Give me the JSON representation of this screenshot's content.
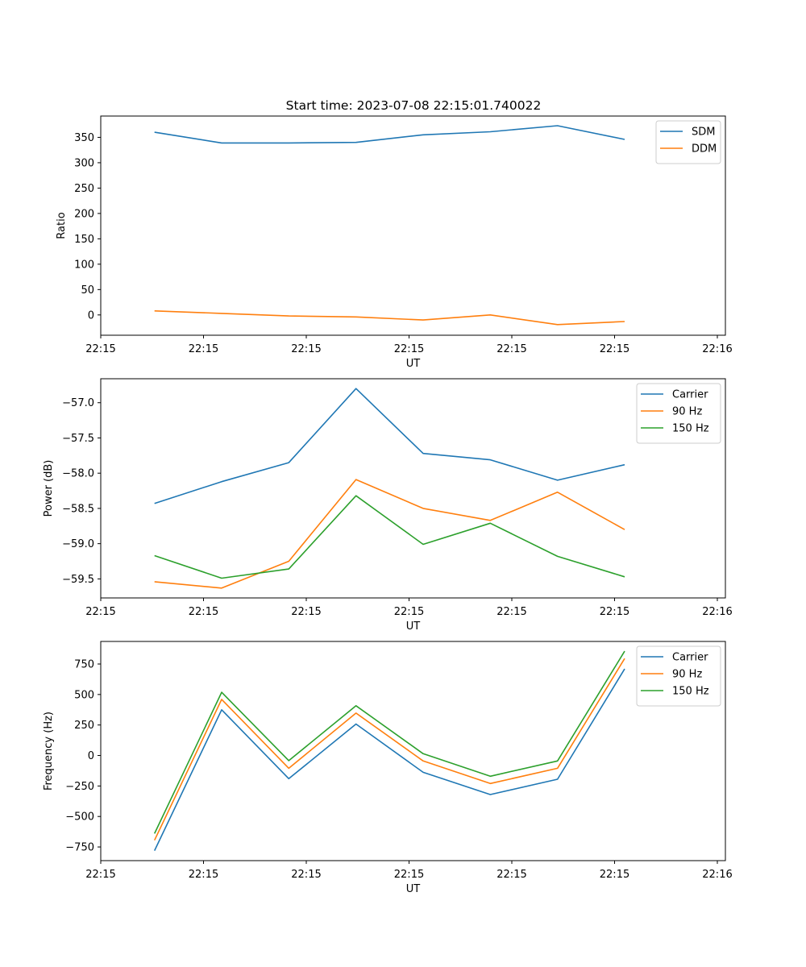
{
  "figure_title": "Start time: 2023-07-08 22:15:01.740022",
  "colors": {
    "c1": "#1f77b4",
    "c2": "#ff7f0e",
    "c3": "#2ca02c"
  },
  "chart_data": [
    {
      "type": "line",
      "title": "Start time: 2023-07-08 22:15:01.740022",
      "xlabel": "UT",
      "ylabel": "Ratio",
      "xlim": [
        0,
        9.3
      ],
      "ylim": [
        -40,
        392
      ],
      "x": [
        0.8,
        1.8,
        2.8,
        3.8,
        4.8,
        5.8,
        6.8,
        7.8
      ],
      "xticks": [
        0,
        1.53,
        3.06,
        4.59,
        6.12,
        7.65,
        9.18
      ],
      "xticklabels": [
        "22:15",
        "22:15",
        "22:15",
        "22:15",
        "22:15",
        "22:15",
        "22:16"
      ],
      "yticks": [
        0,
        50,
        100,
        150,
        200,
        250,
        300,
        350
      ],
      "yticklabels": [
        "0",
        "50",
        "100",
        "150",
        "200",
        "250",
        "300",
        "350"
      ],
      "legend_position": "top-right",
      "series": [
        {
          "name": "SDM",
          "color": "#1f77b4",
          "values": [
            360,
            339,
            339,
            340,
            355,
            361,
            373,
            346
          ]
        },
        {
          "name": "DDM",
          "color": "#ff7f0e",
          "values": [
            8,
            3,
            -2,
            -4,
            -10,
            0,
            -19,
            -13
          ]
        }
      ]
    },
    {
      "type": "line",
      "title": "",
      "xlabel": "UT",
      "ylabel": "Power (dB)",
      "xlim": [
        0,
        9.3
      ],
      "ylim": [
        -59.77,
        -56.66
      ],
      "x": [
        0.8,
        1.8,
        2.8,
        3.8,
        4.8,
        5.8,
        6.8,
        7.8
      ],
      "xticks": [
        0,
        1.53,
        3.06,
        4.59,
        6.12,
        7.65,
        9.18
      ],
      "xticklabels": [
        "22:15",
        "22:15",
        "22:15",
        "22:15",
        "22:15",
        "22:15",
        "22:16"
      ],
      "yticks": [
        -59.5,
        -59.0,
        -58.5,
        -58.0,
        -57.5,
        -57.0
      ],
      "yticklabels": [
        "−59.5",
        "−59.0",
        "−58.5",
        "−58.0",
        "−57.5",
        "−57.0"
      ],
      "legend_position": "top-right",
      "series": [
        {
          "name": "Carrier",
          "color": "#1f77b4",
          "values": [
            -58.43,
            -58.12,
            -57.85,
            -56.8,
            -57.72,
            -57.81,
            -58.1,
            -57.88
          ]
        },
        {
          "name": "90 Hz",
          "color": "#ff7f0e",
          "values": [
            -59.54,
            -59.63,
            -59.25,
            -58.09,
            -58.5,
            -58.67,
            -58.27,
            -58.8
          ]
        },
        {
          "name": "150 Hz",
          "color": "#2ca02c",
          "values": [
            -59.17,
            -59.49,
            -59.36,
            -58.32,
            -59.01,
            -58.71,
            -59.18,
            -59.47
          ]
        }
      ]
    },
    {
      "type": "line",
      "title": "",
      "xlabel": "UT",
      "ylabel": "Frequency (Hz)",
      "xlim": [
        0,
        9.3
      ],
      "ylim": [
        -862,
        935
      ],
      "x": [
        0.8,
        1.8,
        2.8,
        3.8,
        4.8,
        5.8,
        6.8,
        7.8
      ],
      "xticks": [
        0,
        1.53,
        3.06,
        4.59,
        6.12,
        7.65,
        9.18
      ],
      "xticklabels": [
        "22:15",
        "22:15",
        "22:15",
        "22:15",
        "22:15",
        "22:15",
        "22:16"
      ],
      "yticks": [
        -750,
        -500,
        -250,
        0,
        250,
        500,
        750
      ],
      "yticklabels": [
        "−750",
        "−500",
        "−250",
        "0",
        "250",
        "500",
        "750"
      ],
      "legend_position": "top-right",
      "series": [
        {
          "name": "Carrier",
          "color": "#1f77b4",
          "values": [
            -780,
            375,
            -190,
            258,
            -138,
            -320,
            -195,
            710
          ]
        },
        {
          "name": "90 Hz",
          "color": "#ff7f0e",
          "values": [
            -695,
            460,
            -105,
            348,
            -45,
            -230,
            -105,
            795
          ]
        },
        {
          "name": "150 Hz",
          "color": "#2ca02c",
          "values": [
            -640,
            518,
            -42,
            408,
            15,
            -170,
            -45,
            855
          ]
        }
      ]
    }
  ]
}
